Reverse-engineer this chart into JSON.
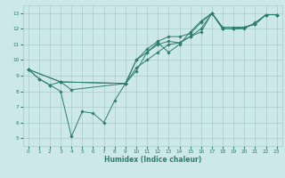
{
  "title": "",
  "xlabel": "Humidex (Indice chaleur)",
  "bg_color": "#cce8e8",
  "grid_color": "#aacccc",
  "line_color": "#2e7d6e",
  "xlim": [
    -0.5,
    23.5
  ],
  "ylim": [
    4.5,
    13.5
  ],
  "xticks": [
    0,
    1,
    2,
    3,
    4,
    5,
    6,
    7,
    8,
    9,
    10,
    11,
    12,
    13,
    14,
    15,
    16,
    17,
    18,
    19,
    20,
    21,
    22,
    23
  ],
  "yticks": [
    5,
    6,
    7,
    8,
    9,
    10,
    11,
    12,
    13
  ],
  "lines": [
    {
      "x": [
        0,
        1,
        2,
        3,
        4,
        5,
        6,
        7,
        8,
        9,
        10,
        11,
        12,
        13,
        14,
        15,
        16,
        17,
        18,
        19,
        20,
        21,
        22,
        23
      ],
      "y": [
        9.4,
        8.8,
        8.4,
        8.0,
        5.1,
        6.7,
        6.6,
        6.0,
        7.4,
        8.5,
        9.3,
        10.5,
        11.1,
        10.5,
        11.0,
        11.8,
        12.5,
        13.0,
        12.0,
        12.0,
        12.0,
        12.4,
        12.9,
        12.9
      ],
      "marker": "D",
      "markersize": 1.8
    },
    {
      "x": [
        0,
        1,
        2,
        3,
        4,
        9,
        10,
        11,
        12,
        13,
        14,
        15,
        16,
        17,
        18,
        19,
        20,
        21,
        22,
        23
      ],
      "y": [
        9.4,
        8.8,
        8.4,
        8.6,
        8.1,
        8.5,
        10.0,
        10.5,
        11.0,
        11.2,
        11.1,
        11.5,
        11.8,
        13.0,
        12.0,
        12.0,
        12.1,
        12.3,
        12.9,
        12.9
      ],
      "marker": "D",
      "markersize": 1.8
    },
    {
      "x": [
        0,
        3,
        9,
        10,
        11,
        12,
        13,
        14,
        15,
        16,
        17,
        18,
        19,
        20,
        21,
        22,
        23
      ],
      "y": [
        9.4,
        8.6,
        8.5,
        10.0,
        10.7,
        11.2,
        11.5,
        11.5,
        11.7,
        12.4,
        13.0,
        12.1,
        12.1,
        12.1,
        12.3,
        12.9,
        12.9
      ],
      "marker": "D",
      "markersize": 1.8
    },
    {
      "x": [
        0,
        3,
        9,
        10,
        11,
        12,
        13,
        14,
        15,
        16,
        17,
        18,
        19,
        20,
        21,
        22,
        23
      ],
      "y": [
        9.4,
        8.6,
        8.5,
        9.5,
        10.0,
        10.5,
        11.0,
        11.1,
        11.5,
        12.0,
        13.0,
        12.0,
        12.0,
        12.1,
        12.3,
        12.9,
        12.9
      ],
      "marker": "D",
      "markersize": 1.8
    }
  ],
  "xlabel_fontsize": 5.5,
  "tick_fontsize": 4.2
}
